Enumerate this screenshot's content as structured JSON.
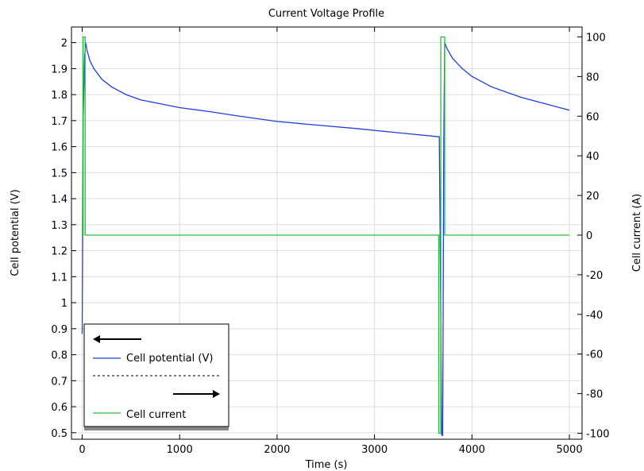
{
  "chart_data": {
    "type": "line",
    "title": "Current Voltage Profile",
    "xlabel": "Time (s)",
    "ylabel_left": "Cell potential (V)",
    "ylabel_right": "Cell current (A)",
    "xlim": [
      -110,
      5130
    ],
    "ylim_left": [
      0.475,
      2.06
    ],
    "ylim_right": [
      -103,
      105
    ],
    "x_ticks": [
      0,
      1000,
      2000,
      3000,
      4000,
      5000
    ],
    "y_left_ticks": [
      2,
      1.9,
      1.8,
      1.7,
      1.6,
      1.5,
      1.4,
      1.3,
      1.2,
      1.1,
      1,
      0.9,
      0.8,
      0.7,
      0.6,
      0.5
    ],
    "y_left_tick_labels": [
      "2",
      "1.9",
      "1.8",
      "1.7",
      "1.6",
      "1.5",
      "1.4",
      "1.3",
      "1.2",
      "1.1",
      "1",
      "0.9",
      "0.8",
      "0.7",
      "0.6",
      "0.5"
    ],
    "y_right_ticks": [
      100,
      80,
      60,
      40,
      20,
      0,
      -20,
      -40,
      -60,
      -80,
      -100
    ],
    "y_right_tick_labels": [
      "100",
      "80",
      "60",
      "40",
      "20",
      "0",
      "-20",
      "-40",
      "-60",
      "-80",
      "-100"
    ],
    "grid": true,
    "legend_position": "bottom-left",
    "series": [
      {
        "name": "Cell potential (V)",
        "axis": "left",
        "color": "#1f3fe0",
        "x": [
          0,
          10,
          25,
          36,
          50,
          80,
          120,
          200,
          300,
          450,
          600,
          800,
          1000,
          1300,
          1600,
          2000,
          2400,
          2800,
          3200,
          3660,
          3665,
          3690,
          3700,
          3710,
          3720,
          3740,
          3800,
          3900,
          4000,
          4200,
          4500,
          5000
        ],
        "y": [
          0.88,
          1.7,
          1.95,
          2.0,
          1.97,
          1.93,
          1.9,
          1.86,
          1.83,
          1.8,
          1.78,
          1.765,
          1.75,
          1.735,
          1.718,
          1.697,
          1.683,
          1.67,
          1.655,
          1.638,
          1.638,
          0.49,
          0.49,
          1.6,
          2.0,
          1.98,
          1.94,
          1.9,
          1.87,
          1.83,
          1.79,
          1.74
        ]
      },
      {
        "name": "Cell current",
        "axis": "right",
        "color": "#22c03a",
        "x": [
          0,
          10,
          10,
          30,
          30,
          3660,
          3660,
          3680,
          3680,
          3700,
          3700,
          3720,
          3720,
          5000
        ],
        "y": [
          0,
          0,
          100,
          100,
          0,
          0,
          -100,
          -100,
          100,
          100,
          100,
          100,
          0,
          0
        ]
      }
    ]
  }
}
